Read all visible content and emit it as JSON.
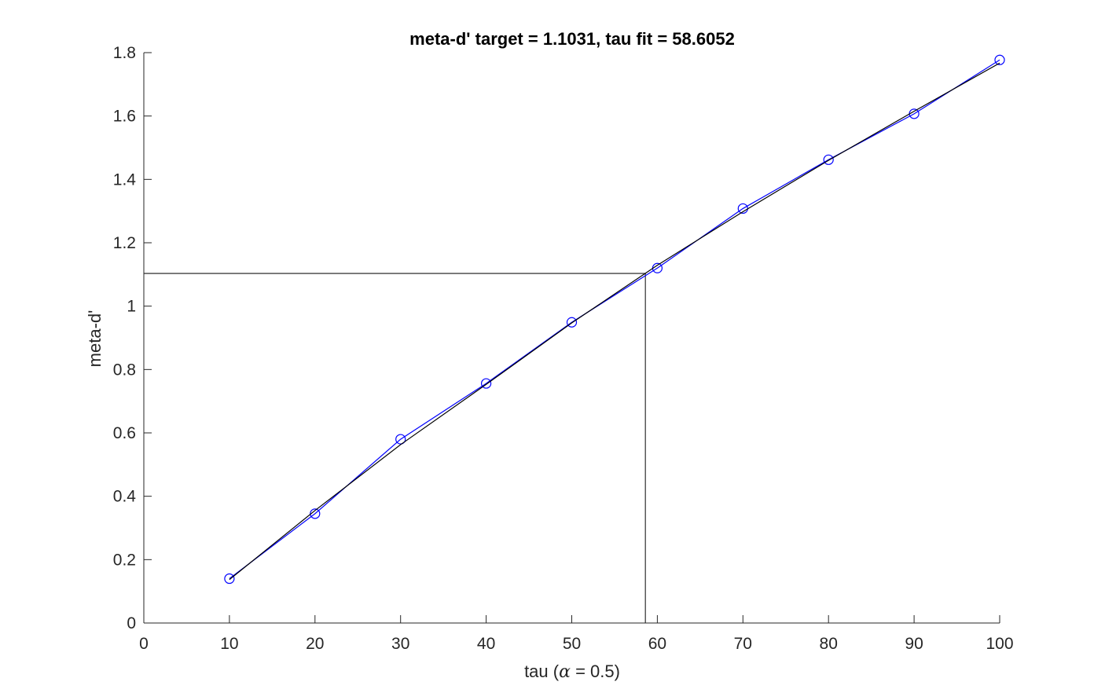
{
  "chart_data": {
    "type": "line",
    "title": "meta-d' target = 1.1031, tau fit = 58.6052",
    "xlabel_prefix": "tau (",
    "xlabel_symbol": "α",
    "xlabel_suffix": " = 0.5)",
    "ylabel": "meta-d'",
    "xlim": [
      0,
      100
    ],
    "ylim": [
      0,
      1.8
    ],
    "xticks": [
      0,
      10,
      20,
      30,
      40,
      50,
      60,
      70,
      80,
      90,
      100
    ],
    "yticks": [
      0,
      0.2,
      0.4,
      0.6,
      0.8,
      1,
      1.2,
      1.4,
      1.6,
      1.8
    ],
    "grid": false,
    "series": [
      {
        "style": "markers-line",
        "color": "#0000ff",
        "marker": "circle",
        "x": [
          10,
          20,
          30,
          40,
          50,
          60,
          70,
          80,
          90,
          100
        ],
        "y": [
          0.14,
          0.345,
          0.58,
          0.756,
          0.949,
          1.12,
          1.308,
          1.462,
          1.607,
          1.777
        ]
      },
      {
        "style": "line",
        "color": "#000000",
        "x": [
          10,
          20,
          30,
          40,
          50,
          60,
          70,
          80,
          90,
          100
        ],
        "y": [
          0.137,
          0.355,
          0.563,
          0.753,
          0.947,
          1.129,
          1.298,
          1.46,
          1.615,
          1.767
        ]
      }
    ],
    "reference": {
      "x": 58.6052,
      "y": 1.1031,
      "color": "#404040"
    }
  }
}
